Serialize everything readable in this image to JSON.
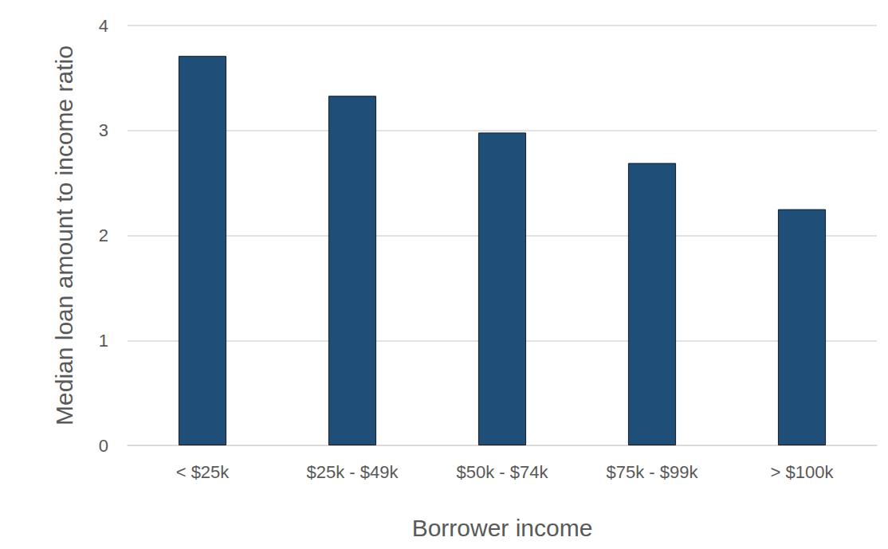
{
  "chart_data": {
    "type": "bar",
    "x_label": "Borrower income",
    "y_label": "Median loan amount to income ratio",
    "categories": [
      "< $25k",
      "$25k - $49k",
      "$50k - $74k",
      "$75k - $99k",
      "> $100k"
    ],
    "values": [
      3.71,
      3.33,
      2.98,
      2.69,
      2.25
    ],
    "color": "#1f4e79",
    "ylim": [
      0,
      4
    ],
    "yticks": [
      0,
      1,
      2,
      3,
      4
    ],
    "grid": true
  }
}
